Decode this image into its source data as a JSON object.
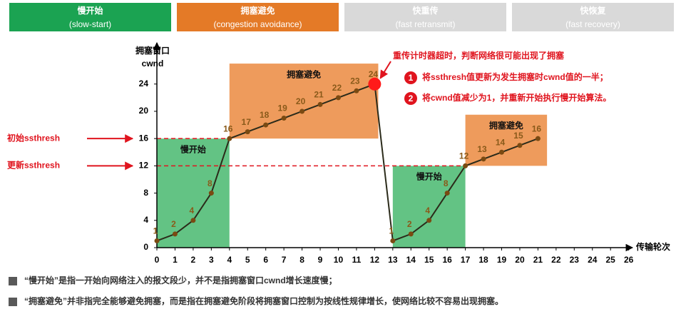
{
  "phases": [
    {
      "title": "慢开始",
      "subtitle": "(slow-start)",
      "color": "#1ba352"
    },
    {
      "title": "拥塞避免",
      "subtitle": "(congestion avoidance)",
      "color": "#e47a27"
    },
    {
      "title": "快重传",
      "subtitle": "(fast retransmit)",
      "color": "#d9d9d9"
    },
    {
      "title": "快恢复",
      "subtitle": "(fast recovery)",
      "color": "#d9d9d9"
    }
  ],
  "chart_data": {
    "type": "line",
    "y_label": "拥塞窗口",
    "y_unit": "cwnd",
    "x_label": "传输轮次",
    "x": [
      0,
      1,
      2,
      3,
      4,
      5,
      6,
      7,
      8,
      9,
      10,
      11,
      12,
      13,
      14,
      15,
      16,
      17,
      18,
      19,
      20,
      21
    ],
    "values": [
      1,
      2,
      4,
      8,
      16,
      17,
      18,
      19,
      20,
      21,
      22,
      23,
      24,
      1,
      2,
      4,
      8,
      12,
      13,
      14,
      15,
      16
    ],
    "color": "#2b2b1a",
    "marker_color": "#7a4a12",
    "label_color": "#8a5a1a",
    "xlim": [
      0,
      26.8
    ],
    "xticks": [
      0,
      1,
      2,
      3,
      4,
      5,
      6,
      7,
      8,
      9,
      10,
      11,
      12,
      13,
      14,
      15,
      16,
      17,
      18,
      19,
      20,
      21,
      22,
      23,
      24,
      25,
      26
    ],
    "ylim": [
      0,
      29
    ],
    "yticks": [
      0,
      4,
      8,
      12,
      16,
      20,
      24
    ],
    "regions": [
      {
        "label": "慢开始",
        "x": [
          0,
          4
        ],
        "y": [
          0,
          16
        ],
        "color": "#63c384"
      },
      {
        "label": "拥塞避免",
        "x": [
          4,
          12.2
        ],
        "y": [
          16,
          27
        ],
        "color": "#ee9b5c"
      },
      {
        "label": "慢开始",
        "x": [
          13,
          17
        ],
        "y": [
          0,
          12
        ],
        "color": "#63c384"
      },
      {
        "label": "拥塞避免",
        "x": [
          17,
          21.5
        ],
        "y": [
          12,
          19.5
        ],
        "color": "#ee9b5c"
      }
    ],
    "thresholds": [
      {
        "label": "初始ssthresh",
        "value": 16,
        "x": [
          0,
          4
        ]
      },
      {
        "label": "更新ssthresh",
        "value": 12,
        "x": [
          0,
          17
        ]
      }
    ],
    "threshold_color": "#e0141e",
    "timeout": {
      "x": 12,
      "y": 24,
      "color": "#ff1a1a",
      "text": "重传计时器超时，判断网络很可能出现了拥塞",
      "steps": [
        {
          "number": "1",
          "text": "将ssthresh值更新为发生拥塞时cwnd值的一半；"
        },
        {
          "number": "2",
          "text": "将cwnd值减少为1，并重新开始执行慢开始算法。"
        }
      ]
    }
  },
  "notes": [
    "“慢开始”是指一开始向网络注入的报文段少，并不是指拥塞窗口cwnd增长速度慢；",
    "“拥塞避免”并非指完全能够避免拥塞，而是指在拥塞避免阶段将拥塞窗口控制为按线性规律增长，使网络比较不容易出现拥塞。"
  ]
}
